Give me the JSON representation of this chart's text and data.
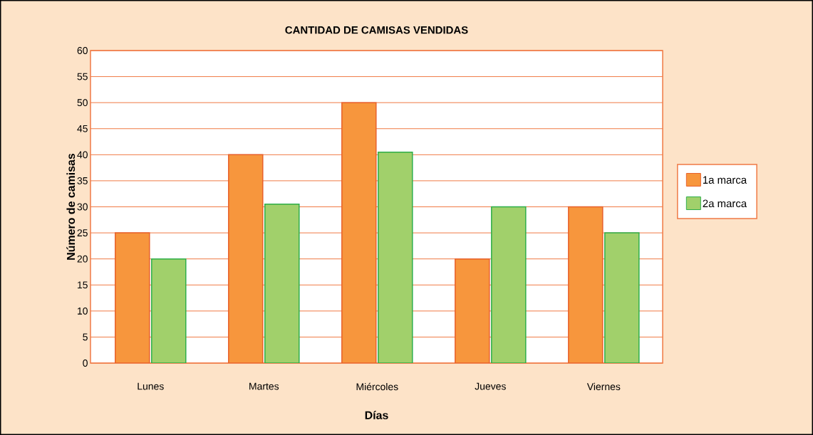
{
  "chart_data": {
    "type": "bar",
    "title": "CANTIDAD DE CAMISAS VENDIDAS",
    "xlabel": "Días",
    "ylabel": "Número de camisas",
    "categories": [
      "Lunes",
      "Martes",
      "Miércoles",
      "Jueves",
      "Viernes"
    ],
    "series": [
      {
        "name": "1a marca",
        "color": "#f7963d",
        "values": [
          25,
          40,
          50,
          20,
          30
        ]
      },
      {
        "name": "2a marca",
        "color": "#a1d06b",
        "values": [
          20,
          30.5,
          40.5,
          30,
          25
        ]
      }
    ],
    "ylim": [
      0,
      60
    ],
    "yticks": [
      0,
      5,
      10,
      15,
      20,
      25,
      30,
      35,
      40,
      45,
      50,
      55,
      60
    ],
    "grid": "y",
    "legend": "right"
  }
}
